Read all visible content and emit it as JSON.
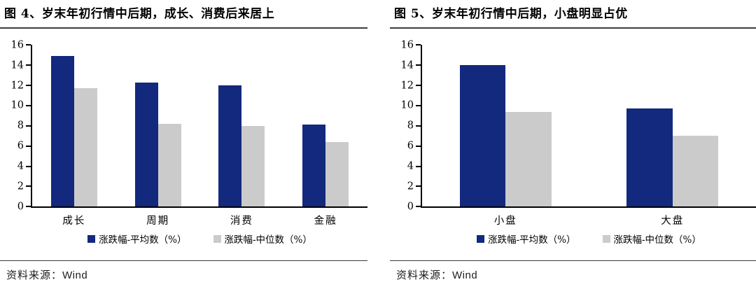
{
  "colors": {
    "bar_mean_blue": "#12297E",
    "bar_median_gray": "#CBCBCB",
    "axis_black": "#000000",
    "title_rule": "#3d3d3d",
    "footer_rule": "#3a3a3a"
  },
  "panels": [
    {
      "title": "图 4、岁末年初行情中后期，成长、消费后来居上",
      "source_prefix": "资料来源：",
      "source_name": "Wind"
    },
    {
      "title": "图 5、岁末年初行情中后期，小盘明显占优",
      "source_prefix": "资料来源：",
      "source_name": "Wind"
    }
  ],
  "chart_data": [
    {
      "type": "bar",
      "title": "图 4、岁末年初行情中后期，成长、消费后来居上",
      "categories": [
        "成长",
        "周期",
        "消费",
        "金融"
      ],
      "series": [
        {
          "name": "涨跌幅-平均数（%）",
          "color": "#12297E",
          "values": [
            14.9,
            12.3,
            12.0,
            8.1
          ]
        },
        {
          "name": "涨跌幅-中位数（%）",
          "color": "#CBCBCB",
          "values": [
            11.7,
            8.2,
            8.0,
            6.4
          ]
        }
      ],
      "xlabel": "",
      "ylabel": "",
      "ylim": [
        0,
        16
      ],
      "ytick_step": 2,
      "grid": false,
      "legend_position": "bottom"
    },
    {
      "type": "bar",
      "title": "图 5、岁末年初行情中后期，小盘明显占优",
      "categories": [
        "小盘",
        "大盘"
      ],
      "series": [
        {
          "name": "涨跌幅-平均数（%）",
          "color": "#12297E",
          "values": [
            14.0,
            9.7
          ]
        },
        {
          "name": "涨跌幅-中位数（%）",
          "color": "#CBCBCB",
          "values": [
            9.4,
            7.0
          ]
        }
      ],
      "xlabel": "",
      "ylabel": "",
      "ylim": [
        0,
        16
      ],
      "ytick_step": 2,
      "grid": false,
      "legend_position": "bottom"
    }
  ]
}
